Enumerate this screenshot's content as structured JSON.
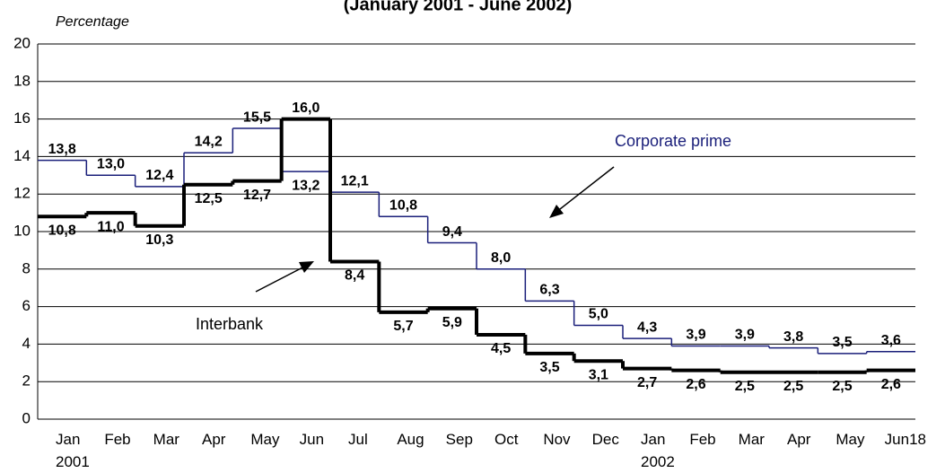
{
  "chart_data": {
    "type": "step",
    "title": "(January 2001 - June 2002)",
    "y_label": "Percentage",
    "categories": [
      "Jan\n2001",
      "Feb",
      "Mar",
      "Apr",
      "May",
      "Jun",
      "Jul",
      "Aug",
      "Sep",
      "Oct",
      "Nov",
      "Dec",
      "Jan\n2002",
      "Feb",
      "Mar",
      "Apr",
      "May",
      "Jun18"
    ],
    "ylim": [
      0,
      20
    ],
    "yticks": [
      0,
      2,
      4,
      6,
      8,
      10,
      12,
      14,
      16,
      18,
      20
    ],
    "grid": true,
    "series": [
      {
        "name": "Corporate prime",
        "color": "#1a1f7a",
        "width": 1.5,
        "values": [
          13.8,
          13.0,
          12.4,
          14.2,
          15.5,
          13.2,
          12.1,
          10.8,
          9.4,
          8.0,
          6.3,
          5.0,
          4.3,
          3.9,
          3.9,
          3.8,
          3.5,
          3.6
        ],
        "value_labels": [
          "13,8",
          "13,0",
          "12,4",
          "14,2",
          "15,5",
          "13,2",
          "12,1",
          "10,8",
          "9,4",
          "8,0",
          "6,3",
          "5,0",
          "4,3",
          "3,9",
          "3,9",
          "3,8",
          "3,5",
          "3,6"
        ]
      },
      {
        "name": "Interbank",
        "color": "#000000",
        "width": 4,
        "values": [
          10.8,
          11.0,
          10.3,
          12.5,
          12.7,
          16.0,
          8.4,
          5.7,
          5.9,
          4.5,
          3.5,
          3.1,
          2.7,
          2.6,
          2.5,
          2.5,
          2.5,
          2.6
        ],
        "value_labels": [
          "10,8",
          "11,0",
          "10,3",
          "12,5",
          "12,7",
          "16,0",
          "8,4",
          "5,7",
          "5,9",
          "4,5",
          "3,5",
          "3,1",
          "2,7",
          "2,6",
          "2,5",
          "2,5",
          "2,5",
          "2,6"
        ]
      }
    ]
  }
}
